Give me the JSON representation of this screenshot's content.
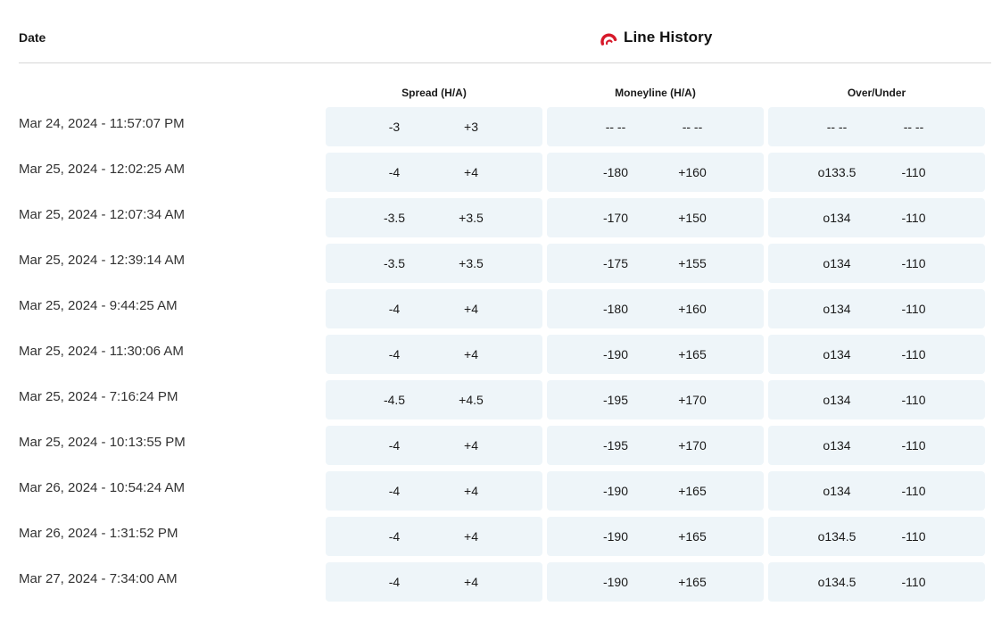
{
  "header": {
    "date_label": "Date",
    "title": "Line History",
    "accent_color": "#d7192a"
  },
  "columns": [
    "Spread (H/A)",
    "Moneyline (H/A)",
    "Over/Under"
  ],
  "rows": [
    {
      "date": "Mar 24, 2024 - 11:57:07 PM",
      "spread": [
        "-3",
        "+3"
      ],
      "moneyline": [
        "-- --",
        "-- --"
      ],
      "total": [
        "-- --",
        "-- --"
      ]
    },
    {
      "date": "Mar 25, 2024 - 12:02:25 AM",
      "spread": [
        "-4",
        "+4"
      ],
      "moneyline": [
        "-180",
        "+160"
      ],
      "total": [
        "o133.5",
        "-110"
      ]
    },
    {
      "date": "Mar 25, 2024 - 12:07:34 AM",
      "spread": [
        "-3.5",
        "+3.5"
      ],
      "moneyline": [
        "-170",
        "+150"
      ],
      "total": [
        "o134",
        "-110"
      ]
    },
    {
      "date": "Mar 25, 2024 - 12:39:14 AM",
      "spread": [
        "-3.5",
        "+3.5"
      ],
      "moneyline": [
        "-175",
        "+155"
      ],
      "total": [
        "o134",
        "-110"
      ]
    },
    {
      "date": "Mar 25, 2024 - 9:44:25 AM",
      "spread": [
        "-4",
        "+4"
      ],
      "moneyline": [
        "-180",
        "+160"
      ],
      "total": [
        "o134",
        "-110"
      ]
    },
    {
      "date": "Mar 25, 2024 - 11:30:06 AM",
      "spread": [
        "-4",
        "+4"
      ],
      "moneyline": [
        "-190",
        "+165"
      ],
      "total": [
        "o134",
        "-110"
      ]
    },
    {
      "date": "Mar 25, 2024 - 7:16:24 PM",
      "spread": [
        "-4.5",
        "+4.5"
      ],
      "moneyline": [
        "-195",
        "+170"
      ],
      "total": [
        "o134",
        "-110"
      ]
    },
    {
      "date": "Mar 25, 2024 - 10:13:55 PM",
      "spread": [
        "-4",
        "+4"
      ],
      "moneyline": [
        "-195",
        "+170"
      ],
      "total": [
        "o134",
        "-110"
      ]
    },
    {
      "date": "Mar 26, 2024 - 10:54:24 AM",
      "spread": [
        "-4",
        "+4"
      ],
      "moneyline": [
        "-190",
        "+165"
      ],
      "total": [
        "o134",
        "-110"
      ]
    },
    {
      "date": "Mar 26, 2024 - 1:31:52 PM",
      "spread": [
        "-4",
        "+4"
      ],
      "moneyline": [
        "-190",
        "+165"
      ],
      "total": [
        "o134.5",
        "-110"
      ]
    },
    {
      "date": "Mar 27, 2024 - 7:34:00 AM",
      "spread": [
        "-4",
        "+4"
      ],
      "moneyline": [
        "-190",
        "+165"
      ],
      "total": [
        "o134.5",
        "-110"
      ]
    }
  ]
}
